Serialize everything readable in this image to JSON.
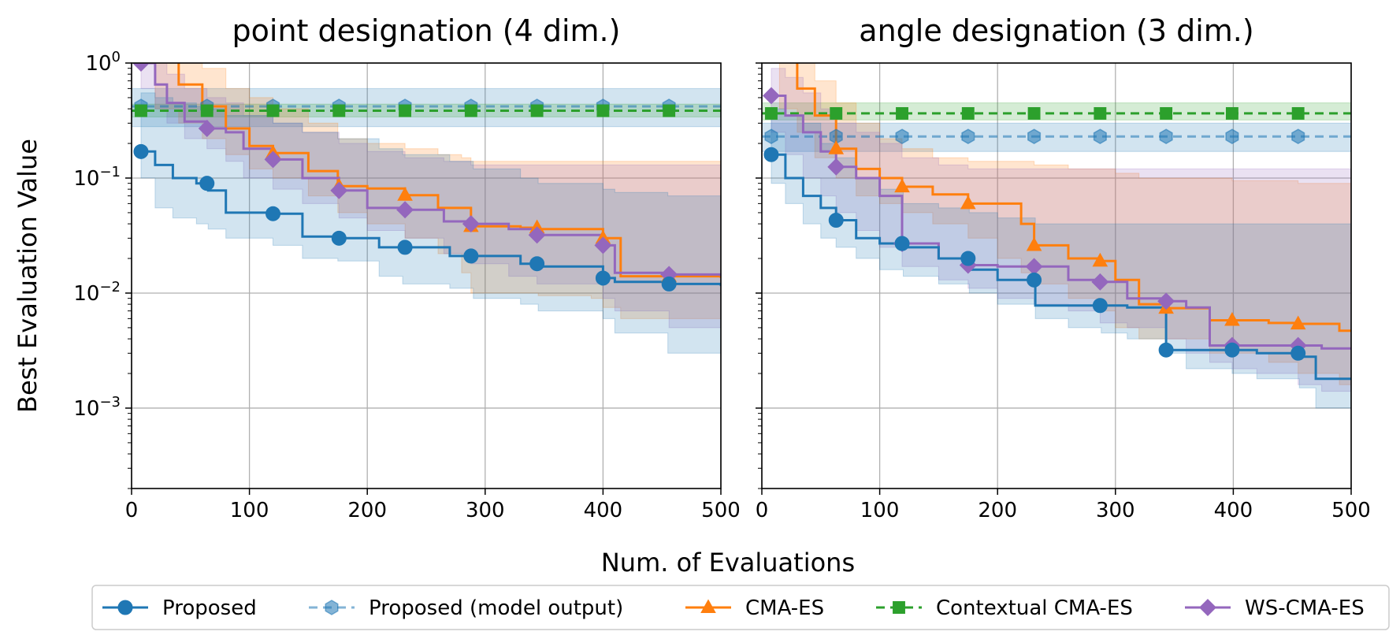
{
  "figure": {
    "ylabel": "Best Evaluation Value",
    "xlabel": "Num. of Evaluations"
  },
  "legend": [
    {
      "label": "Proposed",
      "color": "#1f77b4",
      "marker": "circle",
      "dash": "solid",
      "alpha": 1
    },
    {
      "label": "Proposed (model output)",
      "color": "#1f77b4",
      "marker": "hexagon",
      "dash": "dashed",
      "alpha": 0.55
    },
    {
      "label": "CMA-ES",
      "color": "#ff7f0e",
      "marker": "triangle",
      "dash": "solid",
      "alpha": 1
    },
    {
      "label": "Contextual CMA-ES",
      "color": "#2ca02c",
      "marker": "square",
      "dash": "dashed",
      "alpha": 1
    },
    {
      "label": "WS-CMA-ES",
      "color": "#9467bd",
      "marker": "diamond",
      "dash": "solid",
      "alpha": 1
    }
  ],
  "chart_data": [
    {
      "type": "line",
      "title": "point designation (4 dim.)",
      "xlim": [
        0,
        500
      ],
      "ylim": [
        0.0002,
        1
      ],
      "yscale": "log",
      "grid": true,
      "x_ticks": [
        0,
        100,
        200,
        300,
        400,
        500
      ],
      "y_ticks": [
        {
          "value": 1,
          "label": "10^0"
        },
        {
          "value": 0.1,
          "label": "10^−1"
        },
        {
          "value": 0.01,
          "label": "10^−2"
        },
        {
          "value": 0.001,
          "label": "10^−3"
        }
      ],
      "series": [
        {
          "name": "Proposed",
          "color": "#1f77b4",
          "marker": "circle",
          "dash": "solid",
          "x": [
            8,
            20,
            35,
            55,
            65,
            80,
            120,
            145,
            175,
            210,
            230,
            270,
            290,
            330,
            345,
            400,
            410,
            455,
            500
          ],
          "y": [
            0.17,
            0.13,
            0.1,
            0.09,
            0.078,
            0.05,
            0.049,
            0.031,
            0.03,
            0.025,
            0.025,
            0.021,
            0.021,
            0.018,
            0.017,
            0.0135,
            0.0125,
            0.012,
            0.0115
          ],
          "band_low": [
            0.1,
            0.055,
            0.045,
            0.04,
            0.036,
            0.03,
            0.026,
            0.02,
            0.019,
            0.014,
            0.012,
            0.011,
            0.009,
            0.008,
            0.007,
            0.006,
            0.0045,
            0.003,
            0.0017
          ],
          "band_high": [
            0.55,
            0.5,
            0.45,
            0.42,
            0.4,
            0.35,
            0.3,
            0.25,
            0.22,
            0.18,
            0.16,
            0.14,
            0.12,
            0.1,
            0.09,
            0.08,
            0.075,
            0.07,
            0.07
          ],
          "marker_x": [
            8,
            64,
            120,
            176,
            232,
            288,
            344,
            400,
            456
          ]
        },
        {
          "name": "Proposed (model output)",
          "color": "#1f77b4",
          "marker": "hexagon",
          "dash": "dashed",
          "alpha": 0.55,
          "x": [
            0,
            500
          ],
          "y": [
            0.42,
            0.42
          ],
          "band_low": [
            0.28,
            0.28
          ],
          "band_high": [
            0.6,
            0.6
          ],
          "marker_x": [
            8,
            64,
            120,
            176,
            232,
            288,
            344,
            400,
            456
          ]
        },
        {
          "name": "CMA-ES",
          "color": "#ff7f0e",
          "marker": "triangle",
          "dash": "solid",
          "x": [
            20,
            40,
            60,
            80,
            100,
            120,
            150,
            175,
            200,
            232,
            260,
            280,
            288,
            330,
            345,
            390,
            400,
            415,
            500
          ],
          "y": [
            1.05,
            0.65,
            0.42,
            0.27,
            0.19,
            0.165,
            0.115,
            0.085,
            0.081,
            0.071,
            0.055,
            0.055,
            0.038,
            0.037,
            0.036,
            0.036,
            0.03,
            0.014,
            0.0135
          ],
          "band_low": [
            0.4,
            0.3,
            0.22,
            0.16,
            0.12,
            0.1,
            0.07,
            0.05,
            0.04,
            0.03,
            0.022,
            0.015,
            0.01,
            0.01,
            0.0095,
            0.009,
            0.0075,
            0.006,
            0.0045
          ],
          "band_high": [
            1.1,
            1.1,
            0.9,
            0.6,
            0.5,
            0.4,
            0.3,
            0.22,
            0.2,
            0.18,
            0.16,
            0.15,
            0.14,
            0.14,
            0.14,
            0.14,
            0.14,
            0.14,
            0.14
          ],
          "marker_x": [
            120,
            176,
            232,
            288,
            344,
            400,
            456
          ]
        },
        {
          "name": "WS-CMA-ES",
          "color": "#9467bd",
          "marker": "diamond",
          "dash": "solid",
          "x": [
            8,
            20,
            30,
            45,
            64,
            80,
            95,
            120,
            145,
            176,
            200,
            232,
            265,
            288,
            320,
            344,
            400,
            410,
            456,
            500
          ],
          "y": [
            1.0,
            0.65,
            0.45,
            0.31,
            0.27,
            0.25,
            0.18,
            0.145,
            0.1,
            0.078,
            0.055,
            0.053,
            0.042,
            0.04,
            0.036,
            0.032,
            0.026,
            0.015,
            0.0145,
            0.014
          ],
          "band_low": [
            0.6,
            0.4,
            0.3,
            0.22,
            0.18,
            0.14,
            0.1,
            0.08,
            0.06,
            0.045,
            0.035,
            0.03,
            0.022,
            0.018,
            0.014,
            0.012,
            0.009,
            0.007,
            0.005,
            0.004
          ],
          "band_high": [
            1.1,
            1.0,
            0.8,
            0.6,
            0.5,
            0.45,
            0.35,
            0.3,
            0.25,
            0.2,
            0.17,
            0.15,
            0.14,
            0.13,
            0.13,
            0.13,
            0.13,
            0.13,
            0.13,
            0.13
          ],
          "marker_x": [
            8,
            64,
            120,
            176,
            232,
            288,
            344,
            400,
            456
          ]
        },
        {
          "name": "Contextual CMA-ES",
          "color": "#2ca02c",
          "marker": "square",
          "dash": "dashed",
          "x": [
            0,
            500
          ],
          "y": [
            0.385,
            0.385
          ],
          "band_low": [
            0.34,
            0.34
          ],
          "band_high": [
            0.44,
            0.44
          ],
          "marker_x": [
            8,
            64,
            120,
            176,
            232,
            288,
            344,
            400,
            456
          ]
        }
      ]
    },
    {
      "type": "line",
      "title": "angle designation (3 dim.)",
      "xlim": [
        0,
        500
      ],
      "ylim": [
        0.0002,
        1
      ],
      "yscale": "log",
      "grid": true,
      "x_ticks": [
        0,
        100,
        200,
        300,
        400,
        500
      ],
      "series": [
        {
          "name": "Proposed",
          "color": "#1f77b4",
          "marker": "circle",
          "dash": "solid",
          "x": [
            8,
            20,
            35,
            50,
            63,
            80,
            100,
            120,
            150,
            176,
            200,
            232,
            260,
            288,
            310,
            343,
            360,
            399,
            420,
            456,
            470,
            500
          ],
          "y": [
            0.16,
            0.1,
            0.07,
            0.055,
            0.043,
            0.03,
            0.027,
            0.025,
            0.02,
            0.016,
            0.013,
            0.0078,
            0.0078,
            0.0078,
            0.0075,
            0.0032,
            0.0032,
            0.0032,
            0.003,
            0.0028,
            0.0018,
            0.0018
          ],
          "band_low": [
            0.09,
            0.06,
            0.04,
            0.03,
            0.025,
            0.02,
            0.016,
            0.014,
            0.012,
            0.01,
            0.008,
            0.006,
            0.005,
            0.0045,
            0.004,
            0.003,
            0.0022,
            0.002,
            0.0018,
            0.0015,
            0.001,
            0.0009
          ],
          "band_high": [
            0.4,
            0.35,
            0.3,
            0.2,
            0.15,
            0.1,
            0.08,
            0.06,
            0.055,
            0.05,
            0.045,
            0.04,
            0.04,
            0.04,
            0.04,
            0.04,
            0.04,
            0.04,
            0.04,
            0.04,
            0.04,
            0.04
          ],
          "marker_x": [
            8,
            63,
            119,
            175,
            231,
            287,
            343,
            399,
            455
          ]
        },
        {
          "name": "Proposed (model output)",
          "color": "#1f77b4",
          "marker": "hexagon",
          "dash": "dashed",
          "alpha": 0.55,
          "x": [
            0,
            500
          ],
          "y": [
            0.23,
            0.23
          ],
          "band_low": [
            0.17,
            0.17
          ],
          "band_high": [
            0.3,
            0.3
          ],
          "marker_x": [
            8,
            63,
            119,
            175,
            231,
            287,
            343,
            399,
            455
          ]
        },
        {
          "name": "CMA-ES",
          "color": "#ff7f0e",
          "marker": "triangle",
          "dash": "solid",
          "x": [
            15,
            30,
            45,
            63,
            80,
            100,
            119,
            145,
            175,
            200,
            220,
            231,
            260,
            287,
            300,
            320,
            343,
            380,
            399,
            430,
            455,
            490,
            500
          ],
          "y": [
            1.05,
            0.6,
            0.35,
            0.18,
            0.12,
            0.1,
            0.084,
            0.072,
            0.06,
            0.06,
            0.04,
            0.026,
            0.02,
            0.019,
            0.013,
            0.008,
            0.0074,
            0.0058,
            0.0058,
            0.0055,
            0.0054,
            0.0047,
            0.0046
          ],
          "band_low": [
            0.4,
            0.25,
            0.15,
            0.1,
            0.07,
            0.06,
            0.05,
            0.04,
            0.03,
            0.02,
            0.015,
            0.012,
            0.009,
            0.007,
            0.005,
            0.004,
            0.004,
            0.003,
            0.003,
            0.0025,
            0.002,
            0.0016,
            0.0015
          ],
          "band_high": [
            1.1,
            1.0,
            0.7,
            0.45,
            0.3,
            0.22,
            0.18,
            0.15,
            0.14,
            0.14,
            0.14,
            0.13,
            0.12,
            0.12,
            0.11,
            0.1,
            0.1,
            0.1,
            0.095,
            0.095,
            0.09,
            0.09,
            0.09
          ],
          "marker_x": [
            63,
            119,
            175,
            231,
            287,
            343,
            399,
            455
          ]
        },
        {
          "name": "WS-CMA-ES",
          "color": "#9467bd",
          "marker": "diamond",
          "dash": "solid",
          "x": [
            8,
            20,
            35,
            50,
            63,
            80,
            100,
            119,
            150,
            175,
            200,
            231,
            260,
            287,
            310,
            343,
            360,
            380,
            399,
            420,
            455,
            475,
            500
          ],
          "y": [
            0.52,
            0.35,
            0.25,
            0.17,
            0.125,
            0.1,
            0.07,
            0.027,
            0.02,
            0.0175,
            0.017,
            0.017,
            0.013,
            0.0125,
            0.009,
            0.0085,
            0.0075,
            0.0035,
            0.0035,
            0.0035,
            0.0035,
            0.0033,
            0.0033
          ],
          "band_low": [
            0.25,
            0.16,
            0.1,
            0.07,
            0.05,
            0.035,
            0.025,
            0.017,
            0.013,
            0.011,
            0.009,
            0.008,
            0.007,
            0.0055,
            0.005,
            0.004,
            0.003,
            0.0025,
            0.0022,
            0.002,
            0.0016,
            0.0014,
            0.0014
          ],
          "band_high": [
            0.9,
            0.75,
            0.55,
            0.4,
            0.3,
            0.25,
            0.2,
            0.15,
            0.13,
            0.12,
            0.12,
            0.12,
            0.12,
            0.12,
            0.12,
            0.12,
            0.12,
            0.12,
            0.12,
            0.12,
            0.12,
            0.12,
            0.12
          ],
          "marker_x": [
            8,
            63,
            119,
            175,
            231,
            287,
            343,
            399,
            455
          ]
        },
        {
          "name": "Contextual CMA-ES",
          "color": "#2ca02c",
          "marker": "square",
          "dash": "dashed",
          "x": [
            0,
            500
          ],
          "y": [
            0.365,
            0.365
          ],
          "band_low": [
            0.32,
            0.32
          ],
          "band_high": [
            0.45,
            0.45
          ],
          "marker_x": [
            8,
            63,
            119,
            175,
            231,
            287,
            343,
            399,
            455
          ]
        }
      ]
    }
  ]
}
